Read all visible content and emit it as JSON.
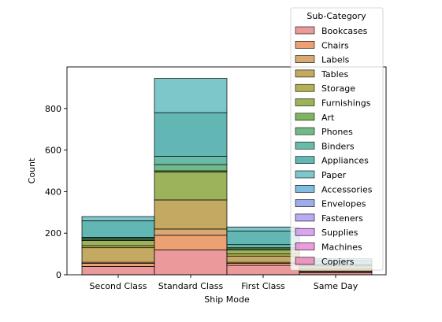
{
  "chart_data": {
    "type": "bar",
    "stacked": true,
    "xlabel": "Ship Mode",
    "ylabel": "Count",
    "ylim": [
      0,
      1000
    ],
    "yticks": [
      0,
      200,
      400,
      600,
      800
    ],
    "categories": [
      "Second Class",
      "Standard Class",
      "First Class",
      "Same Day"
    ],
    "legend": {
      "title": "Sub-Category",
      "placement": "top-right"
    },
    "series": [
      {
        "name": "Bookcases",
        "color": "#e8888a",
        "values": [
          40,
          120,
          45,
          10
        ]
      },
      {
        "name": "Chairs",
        "color": "#e9905c",
        "values": [
          15,
          70,
          10,
          5
        ]
      },
      {
        "name": "Labels",
        "color": "#d29a5c",
        "values": [
          5,
          30,
          5,
          2
        ]
      },
      {
        "name": "Tables",
        "color": "#b89a46",
        "values": [
          70,
          140,
          30,
          10
        ]
      },
      {
        "name": "Storage",
        "color": "#a7a237",
        "values": [
          10,
          0,
          10,
          5
        ]
      },
      {
        "name": "Furnishings",
        "color": "#8ba63d",
        "values": [
          25,
          135,
          20,
          10
        ]
      },
      {
        "name": "Art",
        "color": "#6aa843",
        "values": [
          5,
          5,
          5,
          2
        ]
      },
      {
        "name": "Phones",
        "color": "#5aab72",
        "values": [
          5,
          30,
          5,
          3
        ]
      },
      {
        "name": "Binders",
        "color": "#4fae97",
        "values": [
          5,
          40,
          15,
          5
        ]
      },
      {
        "name": "Appliances",
        "color": "#46aaa7",
        "values": [
          80,
          210,
          65,
          15
        ]
      },
      {
        "name": "Paper",
        "color": "#66bcc0",
        "values": [
          20,
          165,
          20,
          10
        ]
      },
      {
        "name": "Accessories",
        "color": "#6cb0d9",
        "values": [
          0,
          0,
          0,
          0
        ]
      },
      {
        "name": "Envelopes",
        "color": "#8c9ee8",
        "values": [
          0,
          0,
          0,
          0
        ]
      },
      {
        "name": "Fasteners",
        "color": "#b09cf0",
        "values": [
          0,
          0,
          0,
          0
        ]
      },
      {
        "name": "Supplies",
        "color": "#d494ee",
        "values": [
          0,
          0,
          0,
          0
        ]
      },
      {
        "name": "Machines",
        "color": "#ea8bd8",
        "values": [
          0,
          0,
          0,
          0
        ]
      },
      {
        "name": "Copiers",
        "color": "#ef86b9",
        "values": [
          0,
          0,
          0,
          0
        ]
      }
    ]
  }
}
